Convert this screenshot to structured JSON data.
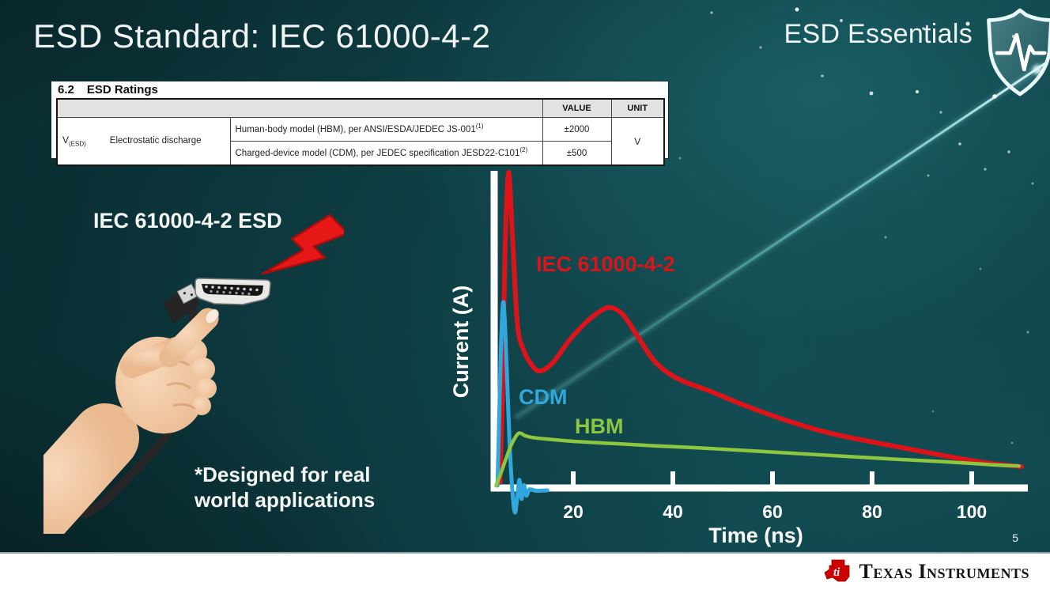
{
  "slide": {
    "title": "ESD Standard: IEC 61000-4-2",
    "program_badge": "ESD Essentials",
    "illustration_label": "IEC 61000-4-2 ESD",
    "footnote": "*Designed for real world applications",
    "page_number": "5",
    "footer_brand": "Texas Instruments"
  },
  "ratings_table": {
    "section_number": "6.2",
    "section_title": "ESD Ratings",
    "headers": {
      "value": "VALUE",
      "unit": "UNIT"
    },
    "param_symbol": "V",
    "param_symbol_sub": "(ESD)",
    "param_name": "Electrostatic discharge",
    "rows": [
      {
        "desc": "Human-body model (HBM), per ANSI/ESDA/JEDEC JS-001",
        "sup": "(1)",
        "value": "±2000"
      },
      {
        "desc": "Charged-device model (CDM), per JEDEC specification JESD22-C101",
        "sup": "(2)",
        "value": "±500"
      }
    ],
    "unit": "V"
  },
  "chart_data": {
    "type": "line",
    "title": "",
    "xlabel": "Time (ns)",
    "ylabel": "Current (A)",
    "x_ticks": [
      20,
      40,
      60,
      80,
      100
    ],
    "xlim": [
      0,
      110
    ],
    "y_units": "relative amplitude (IEC 61000-4-2 peak = 1.0)",
    "ylim": [
      -0.1,
      1.05
    ],
    "grid": false,
    "legend_position": "inline-labels",
    "series": [
      {
        "name": "IEC 61000-4-2",
        "color": "#dc1419",
        "stroke_width": 6,
        "t": [
          5.3,
          5.8,
          6.3,
          7.0,
          7.8,
          8.8,
          10.0,
          11.5,
          13.3,
          16,
          19,
          22.5,
          25.5,
          27.5,
          30,
          33,
          36.5,
          41,
          48,
          55,
          63,
          71,
          79,
          87,
          95,
          103,
          108,
          110
        ],
        "i_rel": [
          0.02,
          0.3,
          0.75,
          1.0,
          0.8,
          0.52,
          0.44,
          0.395,
          0.372,
          0.4,
          0.465,
          0.525,
          0.562,
          0.573,
          0.55,
          0.48,
          0.4,
          0.348,
          0.305,
          0.26,
          0.215,
          0.178,
          0.151,
          0.127,
          0.103,
          0.082,
          0.073,
          0.07
        ]
      },
      {
        "name": "CDM",
        "color": "#30a8de",
        "stroke_width": 5,
        "t": [
          4.8,
          5.1,
          5.5,
          6.0,
          6.6,
          7.2,
          7.8,
          8.3,
          8.8,
          9.2,
          9.6,
          10.1,
          10.6,
          11.2,
          12.5,
          14.8
        ],
        "i_rel": [
          0.01,
          0.2,
          0.45,
          0.59,
          0.4,
          0.15,
          -0.01,
          -0.075,
          -0.02,
          0.028,
          -0.032,
          0.012,
          -0.022,
          -0.002,
          -0.006,
          -0.005
        ]
      },
      {
        "name": "HBM",
        "color": "#8dc63f",
        "stroke_width": 4.5,
        "t": [
          4.5,
          5.5,
          6.5,
          7.6,
          9.0,
          10.3,
          11.5,
          14,
          20,
          28,
          36,
          48,
          60,
          72,
          84,
          95,
          105,
          109.5
        ],
        "i_rel": [
          0.01,
          0.05,
          0.095,
          0.14,
          0.175,
          0.168,
          0.163,
          0.158,
          0.15,
          0.143,
          0.136,
          0.127,
          0.116,
          0.105,
          0.094,
          0.085,
          0.075,
          0.072
        ]
      }
    ]
  }
}
